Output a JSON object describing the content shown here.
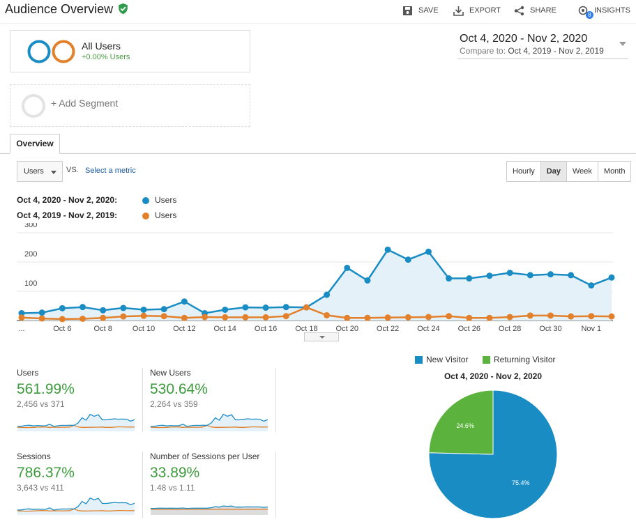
{
  "header": {
    "title": "Audience Overview",
    "actions": {
      "save": "SAVE",
      "export": "EXPORT",
      "share": "SHARE",
      "insights": "INSIGHTS",
      "insights_badge": "8"
    }
  },
  "segments": {
    "active": {
      "title": "All Users",
      "subtitle": "+0.00% Users"
    },
    "add_label": "+ Add Segment"
  },
  "date_range": {
    "main": "Oct 4, 2020 - Nov 2, 2020",
    "compare_prefix": "Compare to:",
    "compare": "Oct 4, 2019 - Nov 2, 2019"
  },
  "tabs": {
    "overview": "Overview"
  },
  "controls": {
    "metric": "Users",
    "vs": "VS.",
    "select_metric": "Select a metric",
    "granularity": [
      "Hourly",
      "Day",
      "Week",
      "Month"
    ],
    "granularity_active": "Day"
  },
  "legend": [
    {
      "range": "Oct 4, 2020 - Nov 2, 2020:",
      "name": "Users",
      "color": "#1a8cc4"
    },
    {
      "range": "Oct 4, 2019 - Nov 2, 2019:",
      "name": "Users",
      "color": "#e3802b"
    }
  ],
  "chart_data": [
    {
      "type": "area",
      "x": [
        "Oct 4",
        "Oct 5",
        "Oct 6",
        "Oct 7",
        "Oct 8",
        "Oct 9",
        "Oct 10",
        "Oct 11",
        "Oct 12",
        "Oct 13",
        "Oct 14",
        "Oct 15",
        "Oct 16",
        "Oct 17",
        "Oct 18",
        "Oct 19",
        "Oct 20",
        "Oct 21",
        "Oct 22",
        "Oct 23",
        "Oct 24",
        "Oct 25",
        "Oct 26",
        "Oct 27",
        "Oct 28",
        "Oct 29",
        "Oct 30",
        "Oct 31",
        "Nov 1",
        "Nov 2"
      ],
      "x_tick_labels": [
        "...",
        "Oct 6",
        "Oct 8",
        "Oct 10",
        "Oct 12",
        "Oct 14",
        "Oct 16",
        "Oct 18",
        "Oct 20",
        "Oct 22",
        "Oct 24",
        "Oct 26",
        "Oct 28",
        "Oct 30",
        "Nov 1"
      ],
      "y_ticks": [
        "300",
        "200",
        "100"
      ],
      "ylim": [
        0,
        300
      ],
      "grid": true,
      "series": [
        {
          "name": "Users",
          "color": "#1a8cc4",
          "values": [
            25,
            27,
            42,
            46,
            35,
            43,
            37,
            39,
            65,
            25,
            37,
            45,
            44,
            46,
            45,
            88,
            180,
            137,
            242,
            208,
            235,
            144,
            144,
            153,
            163,
            155,
            158,
            155,
            120,
            147
          ]
        },
        {
          "name": "Users",
          "color": "#e3802b",
          "values": [
            10,
            7,
            5,
            6,
            9,
            14,
            16,
            15,
            9,
            12,
            11,
            11,
            11,
            15,
            45,
            18,
            9,
            9,
            10,
            11,
            12,
            15,
            9,
            9,
            12,
            17,
            17,
            14,
            15,
            14
          ]
        }
      ]
    },
    {
      "type": "pie",
      "title": "Oct 4, 2020 - Nov 2, 2020",
      "legend_position": "top",
      "slices": [
        {
          "label": "New Visitor",
          "value": 75.4,
          "display": "75.4%",
          "color": "#1a8cc4"
        },
        {
          "label": "Returning Visitor",
          "value": 24.6,
          "display": "24.6%",
          "color": "#5bb23c"
        }
      ]
    }
  ],
  "scorecards": [
    {
      "label": "Users",
      "value": "561.99%",
      "sub": "2,456 vs 371"
    },
    {
      "label": "New Users",
      "value": "530.64%",
      "sub": "2,264 vs 359"
    },
    {
      "label": "Sessions",
      "value": "786.37%",
      "sub": "3,643 vs 411"
    },
    {
      "label": "Number of Sessions per User",
      "value": "33.89%",
      "sub": "1.48 vs 1.11"
    }
  ]
}
